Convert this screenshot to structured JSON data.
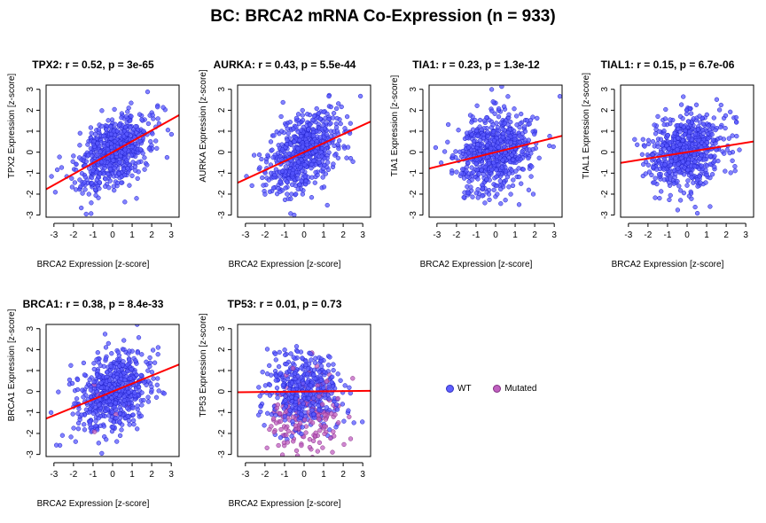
{
  "title": "BC: BRCA2 mRNA Co-Expression (n = 933)",
  "legend": [
    {
      "label": "WT",
      "color": "#6060ff"
    },
    {
      "label": "Mutated",
      "color": "#c060c0"
    }
  ],
  "colors": {
    "wt": "#3a3aff",
    "mutated": "#b040b0",
    "fit_line": "#ff0000"
  },
  "chart_data": [
    {
      "type": "scatter",
      "title": "TPX2: r = 0.52, p = 3e-65",
      "xlabel": "BRCA2 Expression [z-score]",
      "ylabel": "TPX2 Expression [z-score]",
      "xlim": [
        -3.4,
        3.4
      ],
      "ylim": [
        -3.1,
        3.2
      ],
      "x_ticks": [
        -3,
        -2,
        -1,
        0,
        1,
        2,
        3
      ],
      "y_ticks": [
        -3,
        -2,
        -1,
        0,
        1,
        2,
        3
      ],
      "n": 933,
      "r": 0.52,
      "fit_line": {
        "intercept": 0.0,
        "slope": 0.52
      },
      "mutated_fraction": 0.0
    },
    {
      "type": "scatter",
      "title": "AURKA: r = 0.43, p = 5.5e-44",
      "xlabel": "BRCA2 Expression [z-score]",
      "ylabel": "AURKA Expression [z-score]",
      "xlim": [
        -3.4,
        3.4
      ],
      "ylim": [
        -3.1,
        3.2
      ],
      "x_ticks": [
        -3,
        -2,
        -1,
        0,
        1,
        2,
        3
      ],
      "y_ticks": [
        -3,
        -2,
        -1,
        0,
        1,
        2,
        3
      ],
      "n": 933,
      "r": 0.43,
      "fit_line": {
        "intercept": 0.0,
        "slope": 0.43
      },
      "mutated_fraction": 0.0
    },
    {
      "type": "scatter",
      "title": "TIA1: r = 0.23, p = 1.3e-12",
      "xlabel": "BRCA2 Expression [z-score]",
      "ylabel": "TIA1 Expression [z-score]",
      "xlim": [
        -3.4,
        3.4
      ],
      "ylim": [
        -3.1,
        3.2
      ],
      "x_ticks": [
        -3,
        -2,
        -1,
        0,
        1,
        2,
        3
      ],
      "y_ticks": [
        -3,
        -2,
        -1,
        0,
        1,
        2,
        3
      ],
      "n": 933,
      "r": 0.23,
      "fit_line": {
        "intercept": 0.0,
        "slope": 0.23
      },
      "mutated_fraction": 0.0
    },
    {
      "type": "scatter",
      "title": "TIAL1: r = 0.15, p = 6.7e-06",
      "xlabel": "BRCA2 Expression [z-score]",
      "ylabel": "TIAL1 Expression [z-score]",
      "xlim": [
        -3.4,
        3.4
      ],
      "ylim": [
        -3.1,
        3.2
      ],
      "x_ticks": [
        -3,
        -2,
        -1,
        0,
        1,
        2,
        3
      ],
      "y_ticks": [
        -3,
        -2,
        -1,
        0,
        1,
        2,
        3
      ],
      "n": 933,
      "r": 0.15,
      "fit_line": {
        "intercept": 0.0,
        "slope": 0.15
      },
      "mutated_fraction": 0.0
    },
    {
      "type": "scatter",
      "title": "BRCA1: r = 0.38, p = 8.4e-33",
      "xlabel": "BRCA2 Expression [z-score]",
      "ylabel": "BRCA1 Expression [z-score]",
      "xlim": [
        -3.4,
        3.4
      ],
      "ylim": [
        -3.1,
        3.2
      ],
      "x_ticks": [
        -3,
        -2,
        -1,
        0,
        1,
        2,
        3
      ],
      "y_ticks": [
        -3,
        -2,
        -1,
        0,
        1,
        2,
        3
      ],
      "n": 933,
      "r": 0.38,
      "fit_line": {
        "intercept": 0.0,
        "slope": 0.38
      },
      "mutated_fraction": 0.01
    },
    {
      "type": "scatter",
      "title": "TP53: r = 0.01, p = 0.73",
      "xlabel": "BRCA2 Expression [z-score]",
      "ylabel": "TP53 Expression [z-score]",
      "xlim": [
        -3.4,
        3.4
      ],
      "ylim": [
        -3.1,
        3.2
      ],
      "x_ticks": [
        -3,
        -2,
        -1,
        0,
        1,
        2,
        3
      ],
      "y_ticks": [
        -3,
        -2,
        -1,
        0,
        1,
        2,
        3
      ],
      "n": 933,
      "r": 0.01,
      "fit_line": {
        "intercept": 0.0,
        "slope": 0.01
      },
      "mutated_fraction": 0.3
    }
  ]
}
